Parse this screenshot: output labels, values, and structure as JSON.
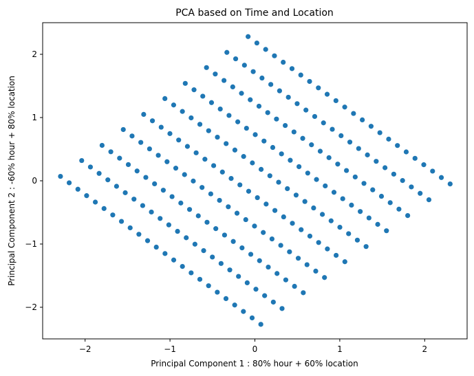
{
  "chart_data": {
    "type": "scatter",
    "title": "PCA based on Time and Location",
    "xlabel": "Principal Component 1 : 80% hour + 60% location",
    "ylabel": "Principal Component 2 : -60% hour + 80% location",
    "xlim": [
      -2.5,
      2.5
    ],
    "ylim": [
      -2.5,
      2.5
    ],
    "xticks": [
      -2,
      -1,
      0,
      1,
      2
    ],
    "yticks": [
      -2,
      -1,
      0,
      1,
      2
    ],
    "xtick_labels": [
      "−2",
      "−1",
      "0",
      "1",
      "2"
    ],
    "ytick_labels": [
      "−2",
      "−1",
      "0",
      "1",
      "2"
    ],
    "grid": false,
    "point_color": "#1f77b4",
    "rows": [
      {
        "start": [
          -0.08,
          2.28
        ],
        "end": [
          2.3,
          -0.05
        ]
      },
      {
        "start": [
          -0.33,
          2.03
        ],
        "end": [
          2.05,
          -0.3
        ]
      },
      {
        "start": [
          -0.57,
          1.79
        ],
        "end": [
          1.8,
          -0.55
        ]
      },
      {
        "start": [
          -0.82,
          1.54
        ],
        "end": [
          1.55,
          -0.79
        ]
      },
      {
        "start": [
          -1.06,
          1.3
        ],
        "end": [
          1.31,
          -1.04
        ]
      },
      {
        "start": [
          -1.31,
          1.05
        ],
        "end": [
          1.06,
          -1.28
        ]
      },
      {
        "start": [
          -1.55,
          0.81
        ],
        "end": [
          0.82,
          -1.53
        ]
      },
      {
        "start": [
          -1.8,
          0.56
        ],
        "end": [
          0.57,
          -1.77
        ]
      },
      {
        "start": [
          -2.04,
          0.32
        ],
        "end": [
          0.32,
          -2.02
        ]
      },
      {
        "start": [
          -2.29,
          0.07
        ],
        "end": [
          0.07,
          -2.27
        ]
      }
    ],
    "points_per_row": 24
  }
}
